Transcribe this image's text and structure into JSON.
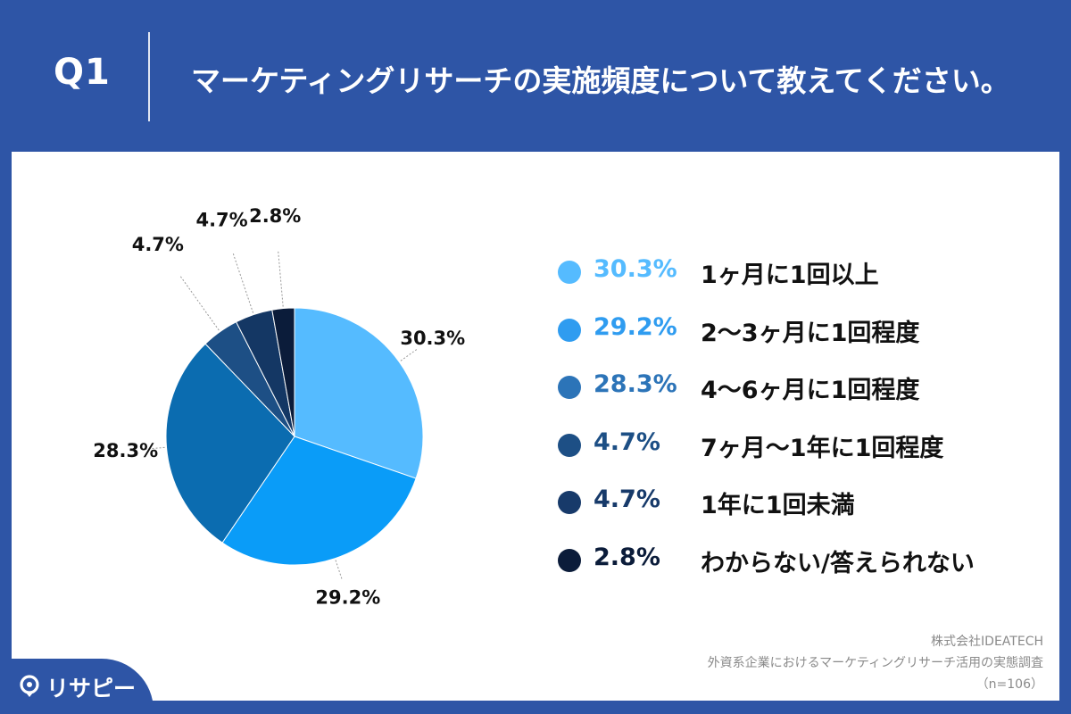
{
  "header": {
    "q_label": "Q1",
    "title": "マーケティングリサーチの実施頻度について教えてください。"
  },
  "chart_data": {
    "type": "pie",
    "categories": [
      "1ヶ月に1回以上",
      "2〜3ヶ月に1回程度",
      "4〜6ヶ月に1回程度",
      "7ヶ月〜1年に1回程度",
      "1年に1回未満",
      "わからない/答えられない"
    ],
    "values": [
      30.3,
      29.2,
      28.3,
      4.7,
      4.7,
      2.8
    ],
    "labels": [
      "30.3%",
      "29.2%",
      "28.3%",
      "4.7%",
      "4.7%",
      "2.8%"
    ],
    "colors": [
      "#55bbff",
      "#0a9cf8",
      "#0b6cb0",
      "#1d4f85",
      "#143764",
      "#0b1c3a"
    ],
    "legend_placement": "right",
    "start": "top",
    "direction": "clockwise"
  },
  "legend": {
    "items": [
      {
        "pct": "30.3%",
        "label": "1ヶ月に1回以上",
        "color": "#55bbff"
      },
      {
        "pct": "29.2%",
        "label": "2〜3ヶ月に1回程度",
        "color": "#2f9cf0"
      },
      {
        "pct": "28.3%",
        "label": "4〜6ヶ月に1回程度",
        "color": "#2c74b8"
      },
      {
        "pct": "4.7%",
        "label": "7ヶ月〜1年に1回程度",
        "color": "#1d4f85"
      },
      {
        "pct": "4.7%",
        "label": "1年に1回未満",
        "color": "#173a6a"
      },
      {
        "pct": "2.8%",
        "label": "わからない/答えられない",
        "color": "#0b1c3a"
      }
    ]
  },
  "source": {
    "company": "株式会社IDEATECH",
    "survey": "外資系企業におけるマーケティングリサーチ活用の実態調査",
    "sample": "（n=106）"
  },
  "logo": {
    "text": "リサピー"
  }
}
